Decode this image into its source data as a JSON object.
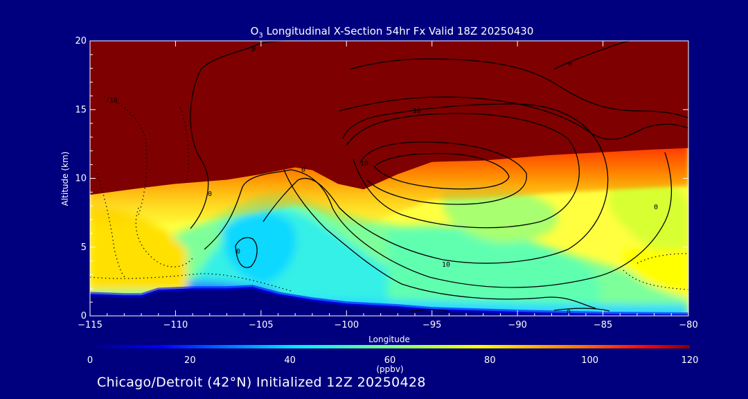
{
  "chart_data": {
    "type": "heatmap",
    "title_prefix": "O",
    "title_sub": "3",
    "title_rest": " Longitudinal X-Section 54hr  Fx Valid 18Z 20250430",
    "xlabel": "Longitude",
    "ylabel": "Altitude (km)",
    "xlim": [
      -115,
      -80
    ],
    "ylim": [
      0,
      20
    ],
    "xticks": [
      -115,
      -110,
      -105,
      -100,
      -95,
      -90,
      -85,
      -80
    ],
    "yticks": [
      0,
      5,
      10,
      15,
      20
    ],
    "colorbar": {
      "range": [
        0,
        120
      ],
      "ticks": [
        0,
        20,
        40,
        60,
        80,
        100,
        120
      ],
      "unit": "(ppbv)"
    },
    "contour_labels": [
      "0",
      "10",
      "-10"
    ],
    "tropopause_height_km": [
      [
        -115,
        8.8
      ],
      [
        -112,
        9.3
      ],
      [
        -110,
        9.6
      ],
      [
        -107,
        9.9
      ],
      [
        -105,
        10.3
      ],
      [
        -103,
        10.8
      ],
      [
        -102,
        10.6
      ],
      [
        -100.5,
        9.6
      ],
      [
        -99,
        9.2
      ],
      [
        -97,
        10.3
      ],
      [
        -95,
        11.2
      ],
      [
        -92,
        11.3
      ],
      [
        -90,
        11.5
      ],
      [
        -88,
        11.7
      ],
      [
        -85,
        11.9
      ],
      [
        -82,
        12.1
      ],
      [
        -80,
        12.2
      ]
    ],
    "terrain_height_km": [
      [
        -115,
        1.6
      ],
      [
        -113,
        1.5
      ],
      [
        -112,
        1.5
      ],
      [
        -111,
        1.9
      ],
      [
        -109,
        2.0
      ],
      [
        -107,
        2.0
      ],
      [
        -105.5,
        2.1
      ],
      [
        -104,
        1.6
      ],
      [
        -102,
        1.2
      ],
      [
        -100,
        0.9
      ],
      [
        -97,
        0.7
      ],
      [
        -95,
        0.5
      ],
      [
        -90,
        0.3
      ],
      [
        -85,
        0.15
      ],
      [
        -80,
        0.1
      ]
    ]
  },
  "footer": {
    "text": "Chicago/Detroit (42°N) Initialized 12Z 20250428"
  }
}
